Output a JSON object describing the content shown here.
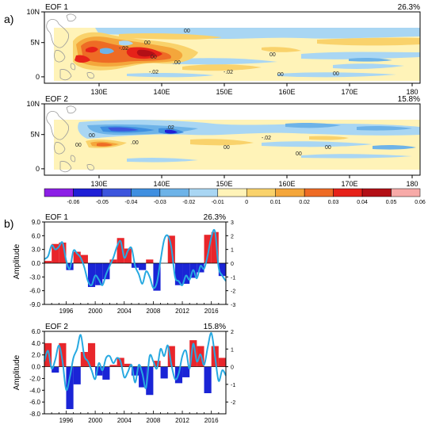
{
  "panel_labels": {
    "a": "a)",
    "b": "b)"
  },
  "maps": [
    {
      "title": "EOF 1",
      "variance": "26.3%",
      "lat_labels": [
        "10N",
        "5N",
        "0"
      ],
      "lon_labels": [
        "130E",
        "140E",
        "150E",
        "160E",
        "170E",
        "180"
      ],
      "contour_labels": [
        "00",
        "00",
        "-.02",
        "00",
        ".00",
        "-.02",
        "00",
        "-.02",
        "00",
        "00"
      ]
    },
    {
      "title": "EOF 2",
      "variance": "15.8%",
      "lat_labels": [
        "10N",
        "5N",
        "0"
      ],
      "lon_labels": [
        "130E",
        "140E",
        "150E",
        "160E",
        "170E",
        "180"
      ],
      "contour_labels": [
        "00",
        ".02",
        ".00",
        "-.02",
        "00",
        "00",
        "00",
        "00"
      ]
    }
  ],
  "colorbar": {
    "colors": [
      "#8c1fe6",
      "#1f1fd6",
      "#3d55dd",
      "#3f8fe0",
      "#6db3e8",
      "#a9d6f3",
      "#fff3b8",
      "#f9d26b",
      "#f4a63b",
      "#ee6b25",
      "#e62119",
      "#b30f16",
      "#f7aaa8"
    ],
    "labels": [
      "-0.06",
      "-0.05",
      "-0.04",
      "-0.03",
      "-0.02",
      "-0.01",
      "0",
      "0.01",
      "0.02",
      "0.03",
      "0.04",
      "0.05",
      "0.06"
    ]
  },
  "colors": {
    "positive": "#e8262b",
    "negative": "#1a24d6",
    "pc_line": "#27a9e1",
    "land": "#9a9a9a"
  },
  "chart_data": [
    {
      "type": "bar",
      "title": "EOF 1",
      "variance": "26.3%",
      "ylabel": "Amplitude",
      "x_tick_labels": [
        "1996",
        "2000",
        "2004",
        "2008",
        "2012",
        "2016"
      ],
      "x_ticks": [
        1996,
        2000,
        2004,
        2008,
        2012,
        2016
      ],
      "xlim": [
        1993,
        2018
      ],
      "ylim": [
        -9,
        9
      ],
      "y_tick_labels": [
        "9.0",
        "6.0",
        "3.0",
        "0.0",
        "-3.0",
        "-6.0",
        "-9.0"
      ],
      "y_ticks": [
        9,
        6,
        3,
        0,
        -3,
        -6,
        -9
      ],
      "y2lim": [
        -3,
        3
      ],
      "y2_tick_labels": [
        "3",
        "2",
        "1",
        "0",
        "-1",
        "-2",
        "-3"
      ],
      "y2_ticks": [
        3,
        2,
        1,
        0,
        -1,
        -2,
        -3
      ],
      "x": [
        1993.5,
        1994.5,
        1995.5,
        1996.5,
        1997.5,
        1998.5,
        1999.5,
        2000.5,
        2001.5,
        2002.5,
        2003.5,
        2004.5,
        2005.5,
        2006.5,
        2007.5,
        2008.5,
        2009.5,
        2010.5,
        2011.5,
        2012.5,
        2013.5,
        2014.5,
        2015.5,
        2016.5,
        2017.5
      ],
      "values": [
        0.5,
        4.2,
        4.5,
        -1.5,
        2.5,
        1.8,
        -5.2,
        -4.8,
        -3.5,
        0.8,
        5.5,
        3.2,
        -1.0,
        -1.5,
        0.8,
        -6.0,
        0,
        6.0,
        -4.8,
        -4.5,
        -3.2,
        -2.0,
        6.2,
        6.8,
        -2.8
      ],
      "pc_x": [
        1993.0,
        1993.5,
        1994.0,
        1994.5,
        1995.0,
        1995.5,
        1996.0,
        1996.5,
        1997.0,
        1997.5,
        1998.0,
        1998.5,
        1999.0,
        1999.5,
        2000.0,
        2000.5,
        2001.0,
        2001.5,
        2002.0,
        2002.5,
        2003.0,
        2003.5,
        2004.0,
        2004.5,
        2005.0,
        2005.5,
        2006.0,
        2006.5,
        2007.0,
        2007.5,
        2008.0,
        2008.5,
        2009.0,
        2009.5,
        2010.0,
        2010.5,
        2011.0,
        2011.5,
        2012.0,
        2012.5,
        2013.0,
        2013.5,
        2014.0,
        2014.5,
        2015.0,
        2015.5,
        2016.0,
        2016.5,
        2017.0,
        2017.5,
        2018.0
      ],
      "pc_y": [
        0.3,
        0.5,
        1.3,
        1.0,
        1.2,
        1.5,
        0.2,
        -0.4,
        0.9,
        0.7,
        0.4,
        -0.3,
        -1.3,
        -1.6,
        -0.9,
        -1.2,
        -1.6,
        -0.8,
        -0.2,
        0.4,
        1.2,
        1.6,
        0.4,
        0.9,
        1.1,
        -0.2,
        -0.8,
        -1.5,
        -0.6,
        -1.0,
        -1.8,
        -1.4,
        0.2,
        1.7,
        2.0,
        1.1,
        -1.0,
        -1.3,
        -1.6,
        -0.9,
        -1.2,
        -0.5,
        -1.1,
        -0.2,
        -0.4,
        0.6,
        1.9,
        2.3,
        -0.3,
        -0.9,
        -1.3
      ]
    },
    {
      "type": "bar",
      "title": "EOF 2",
      "variance": "15.8%",
      "ylabel": "Amplitude",
      "x_tick_labels": [
        "1996",
        "2000",
        "2004",
        "2008",
        "2012",
        "2016"
      ],
      "x_ticks": [
        1996,
        2000,
        2004,
        2008,
        2012,
        2016
      ],
      "xlim": [
        1993,
        2018
      ],
      "ylim": [
        -8,
        6
      ],
      "y_tick_labels": [
        "6.0",
        "4.0",
        "2.0",
        "0.0",
        "-2.0",
        "-4.0",
        "-6.0",
        "-8.0"
      ],
      "y_ticks": [
        6,
        4,
        2,
        0,
        -2,
        -4,
        -6,
        -8
      ],
      "y2lim": [
        -2.667,
        2.0
      ],
      "y2_tick_labels": [
        "2",
        "1",
        "0",
        "-1",
        "-2"
      ],
      "y2_ticks": [
        2,
        1,
        0,
        -1,
        -2
      ],
      "x": [
        1993.5,
        1994.5,
        1995.5,
        1996.5,
        1997.5,
        1998.5,
        1999.5,
        2000.5,
        2001.5,
        2002.5,
        2003.5,
        2004.5,
        2005.5,
        2006.5,
        2007.5,
        2008.5,
        2009.5,
        2010.5,
        2011.5,
        2012.5,
        2013.5,
        2014.5,
        2015.5,
        2016.5,
        2017.5
      ],
      "values": [
        4.0,
        -1.0,
        4.0,
        -7.2,
        -3.0,
        2.5,
        4.0,
        -1.5,
        -2.2,
        0.3,
        1.5,
        0.5,
        -1.5,
        -3.5,
        -4.8,
        1.0,
        -2.0,
        3.5,
        -2.8,
        -1.8,
        4.5,
        3.5,
        -4.5,
        3.5,
        1.5
      ],
      "pc_x": [
        1993.0,
        1993.5,
        1994.0,
        1994.5,
        1995.0,
        1995.5,
        1996.0,
        1996.5,
        1997.0,
        1997.5,
        1998.0,
        1998.5,
        1999.0,
        1999.5,
        2000.0,
        2000.5,
        2001.0,
        2001.5,
        2002.0,
        2002.5,
        2003.0,
        2003.5,
        2004.0,
        2004.5,
        2005.0,
        2005.5,
        2006.0,
        2006.5,
        2007.0,
        2007.5,
        2008.0,
        2008.5,
        2009.0,
        2009.5,
        2010.0,
        2010.5,
        2011.0,
        2011.5,
        2012.0,
        2012.5,
        2013.0,
        2013.5,
        2014.0,
        2014.5,
        2015.0,
        2015.5,
        2016.0,
        2016.5,
        2017.0,
        2017.5,
        2018.0
      ],
      "pc_y": [
        0.3,
        0.9,
        -0.1,
        0.4,
        1.2,
        0.3,
        -1.3,
        -0.6,
        0.5,
        1.0,
        1.8,
        0.6,
        0.3,
        -0.2,
        -0.7,
        0.2,
        -0.2,
        0.5,
        0.6,
        0.2,
        0.5,
        0.3,
        -0.6,
        -0.3,
        0.1,
        -0.9,
        0.1,
        -0.4,
        -1.2,
        0.6,
        0.3,
        -0.1,
        1.0,
        0.6,
        1.2,
        0.1,
        -0.7,
        -0.4,
        0.6,
        0.9,
        -0.1,
        1.3,
        0.3,
        0.7,
        0.1,
        1.1,
        1.9,
        0.6,
        -0.8,
        -0.2,
        -0.5
      ]
    }
  ]
}
